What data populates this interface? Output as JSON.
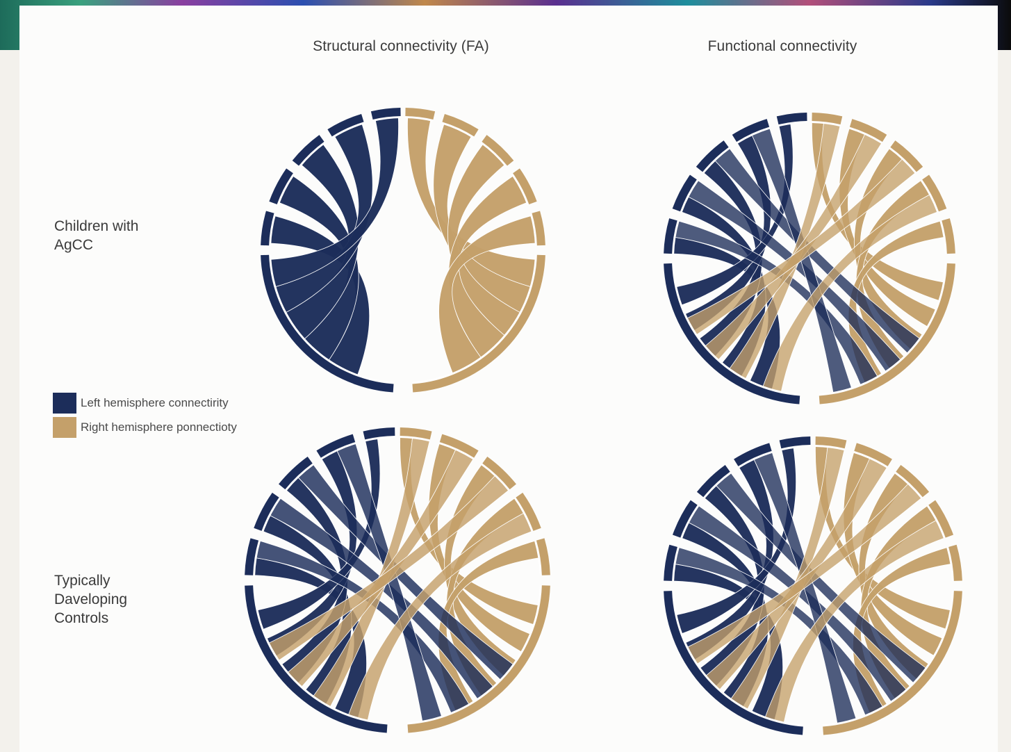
{
  "columns": {
    "structural": "Structural connectivity (FA)",
    "functional": "Functional connectivity"
  },
  "rows": {
    "agcc": [
      "Children with",
      "AgCC"
    ],
    "controls": [
      "Typically",
      "Daveloping",
      "Controls"
    ]
  },
  "legend": {
    "left": "Left hemisphere connectirity",
    "right": "Right hemisphere ponnectioty"
  },
  "colors": {
    "left": "#1c2d5a",
    "right": "#c4a06a",
    "background": "#fcfcfb"
  }
}
